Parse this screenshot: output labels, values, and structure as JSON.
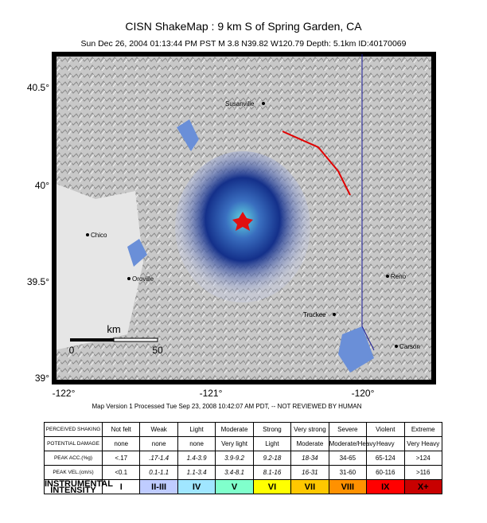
{
  "header": {
    "title": "CISN ShakeMap : 9 km S of  Spring Garden, CA",
    "subtitle": "Sun Dec 26, 2004 01:13:44 PM PST   M 3.8   N39.82 W120.79   Depth: 5.1km   ID:40170069"
  },
  "map": {
    "lat_labels": [
      "40.5°",
      "40°",
      "39.5°",
      "39°"
    ],
    "lon_labels": [
      "-122°",
      "-121°",
      "-120°"
    ],
    "cities": [
      "Susanville",
      "Chico",
      "Oroville",
      "Reno",
      "Truckee",
      "Carson"
    ],
    "scale": {
      "unit": "km",
      "start": "0",
      "end": "50"
    }
  },
  "footer": "Map Version 1 Processed Tue Sep 23, 2008 10:42:07 AM PDT, -- NOT REVIEWED BY HUMAN",
  "table": {
    "rows": [
      {
        "label": "PERCEIVED SHAKING",
        "cells": [
          "Not felt",
          "Weak",
          "Light",
          "Moderate",
          "Strong",
          "Very strong",
          "Severe",
          "Violent",
          "Extreme"
        ]
      },
      {
        "label": "POTENTIAL DAMAGE",
        "cells": [
          "none",
          "none",
          "none",
          "Very light",
          "Light",
          "Moderate",
          "Moderate/Heavy",
          "Heavy",
          "Very Heavy"
        ]
      },
      {
        "label": "PEAK ACC.(%g)",
        "cells": [
          "<.17",
          ".17-1.4",
          "1.4-3.9",
          "3.9-9.2",
          "9.2-18",
          "18-34",
          "34-65",
          "65-124",
          ">124"
        ]
      },
      {
        "label": "PEAK VEL.(cm/s)",
        "cells": [
          "<0.1",
          "0.1-1.1",
          "1.1-3.4",
          "3.4-8.1",
          "8.1-16",
          "16-31",
          "31-60",
          "60-116",
          ">116"
        ]
      },
      {
        "label": "INSTRUMENTAL INTENSITY",
        "cells": [
          "I",
          "II-III",
          "IV",
          "V",
          "VI",
          "VII",
          "VIII",
          "IX",
          "X+"
        ]
      }
    ]
  }
}
